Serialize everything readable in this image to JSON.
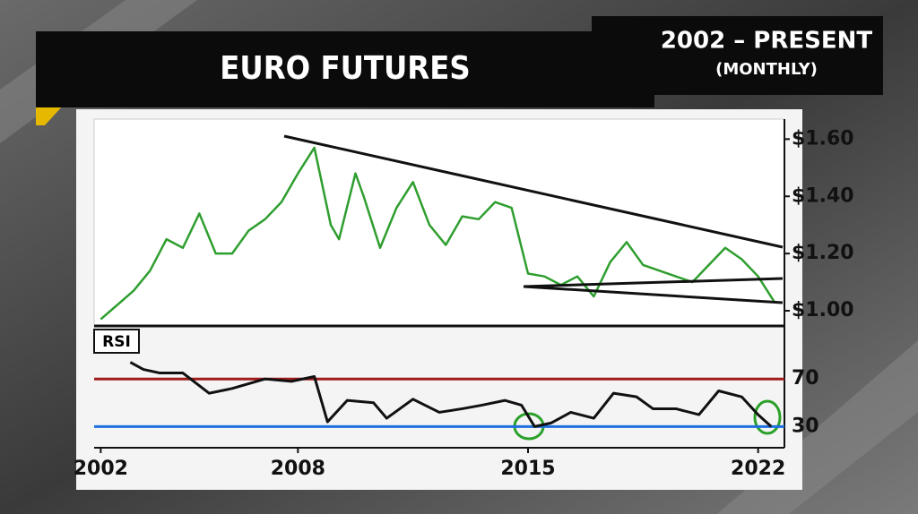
{
  "header": {
    "title": "EURO FUTURES",
    "range": "2002 – PRESENT",
    "interval": "(MONTHLY)"
  },
  "chart_data": [
    {
      "type": "line",
      "color": "#2f9e2f",
      "x": [
        2002.0,
        2002.5,
        2003.0,
        2003.5,
        2004.0,
        2004.5,
        2005.0,
        2005.5,
        2006.0,
        2006.5,
        2007.0,
        2007.5,
        2008.0,
        2008.5,
        2009.0,
        2009.25,
        2009.75,
        2010.0,
        2010.5,
        2011.0,
        2011.5,
        2012.0,
        2012.5,
        2013.0,
        2013.5,
        2014.0,
        2014.5,
        2015.0,
        2015.5,
        2016.0,
        2016.5,
        2017.0,
        2017.5,
        2018.0,
        2018.5,
        2019.0,
        2019.5,
        2020.0,
        2020.5,
        2021.0,
        2021.5,
        2022.0,
        2022.5
      ],
      "values": [
        0.97,
        1.02,
        1.07,
        1.14,
        1.25,
        1.22,
        1.34,
        1.2,
        1.2,
        1.28,
        1.32,
        1.38,
        1.48,
        1.57,
        1.3,
        1.25,
        1.48,
        1.4,
        1.22,
        1.36,
        1.45,
        1.3,
        1.23,
        1.33,
        1.32,
        1.38,
        1.36,
        1.13,
        1.12,
        1.09,
        1.12,
        1.05,
        1.17,
        1.24,
        1.16,
        1.14,
        1.12,
        1.1,
        1.16,
        1.22,
        1.18,
        1.12,
        1.03
      ],
      "xlim": [
        2001.8,
        2022.8
      ],
      "ylim": [
        0.95,
        1.67
      ],
      "yticks": [
        {
          "value": 1.0,
          "label": "$1.00"
        },
        {
          "value": 1.2,
          "label": "$1.20"
        },
        {
          "value": 1.4,
          "label": "$1.40"
        },
        {
          "value": 1.6,
          "label": "$1.60"
        }
      ]
    },
    {
      "type": "line",
      "title": "RSI",
      "color": "#111111",
      "x": [
        2002.9,
        2003.3,
        2003.8,
        2004.5,
        2005.3,
        2006.0,
        2007.0,
        2007.8,
        2008.5,
        2008.9,
        2009.5,
        2010.3,
        2010.7,
        2011.5,
        2012.3,
        2013.0,
        2013.6,
        2014.3,
        2014.8,
        2015.2,
        2015.7,
        2016.3,
        2017.0,
        2017.6,
        2018.3,
        2018.8,
        2019.5,
        2020.2,
        2020.8,
        2021.5,
        2022.0,
        2022.4
      ],
      "values": [
        84,
        78,
        75,
        75,
        58,
        62,
        70,
        68,
        72,
        34,
        52,
        50,
        37,
        53,
        42,
        45,
        48,
        52,
        48,
        30,
        33,
        42,
        37,
        58,
        55,
        45,
        45,
        40,
        60,
        55,
        40,
        30
      ],
      "xlim": [
        2001.8,
        2022.8
      ],
      "ylim": [
        13,
        113
      ],
      "xticks": [
        2002,
        2008,
        2015,
        2022
      ],
      "yticks": [
        30,
        70
      ],
      "ytick_colors": [
        "#1f6fe0",
        "#a01c1c"
      ]
    }
  ]
}
